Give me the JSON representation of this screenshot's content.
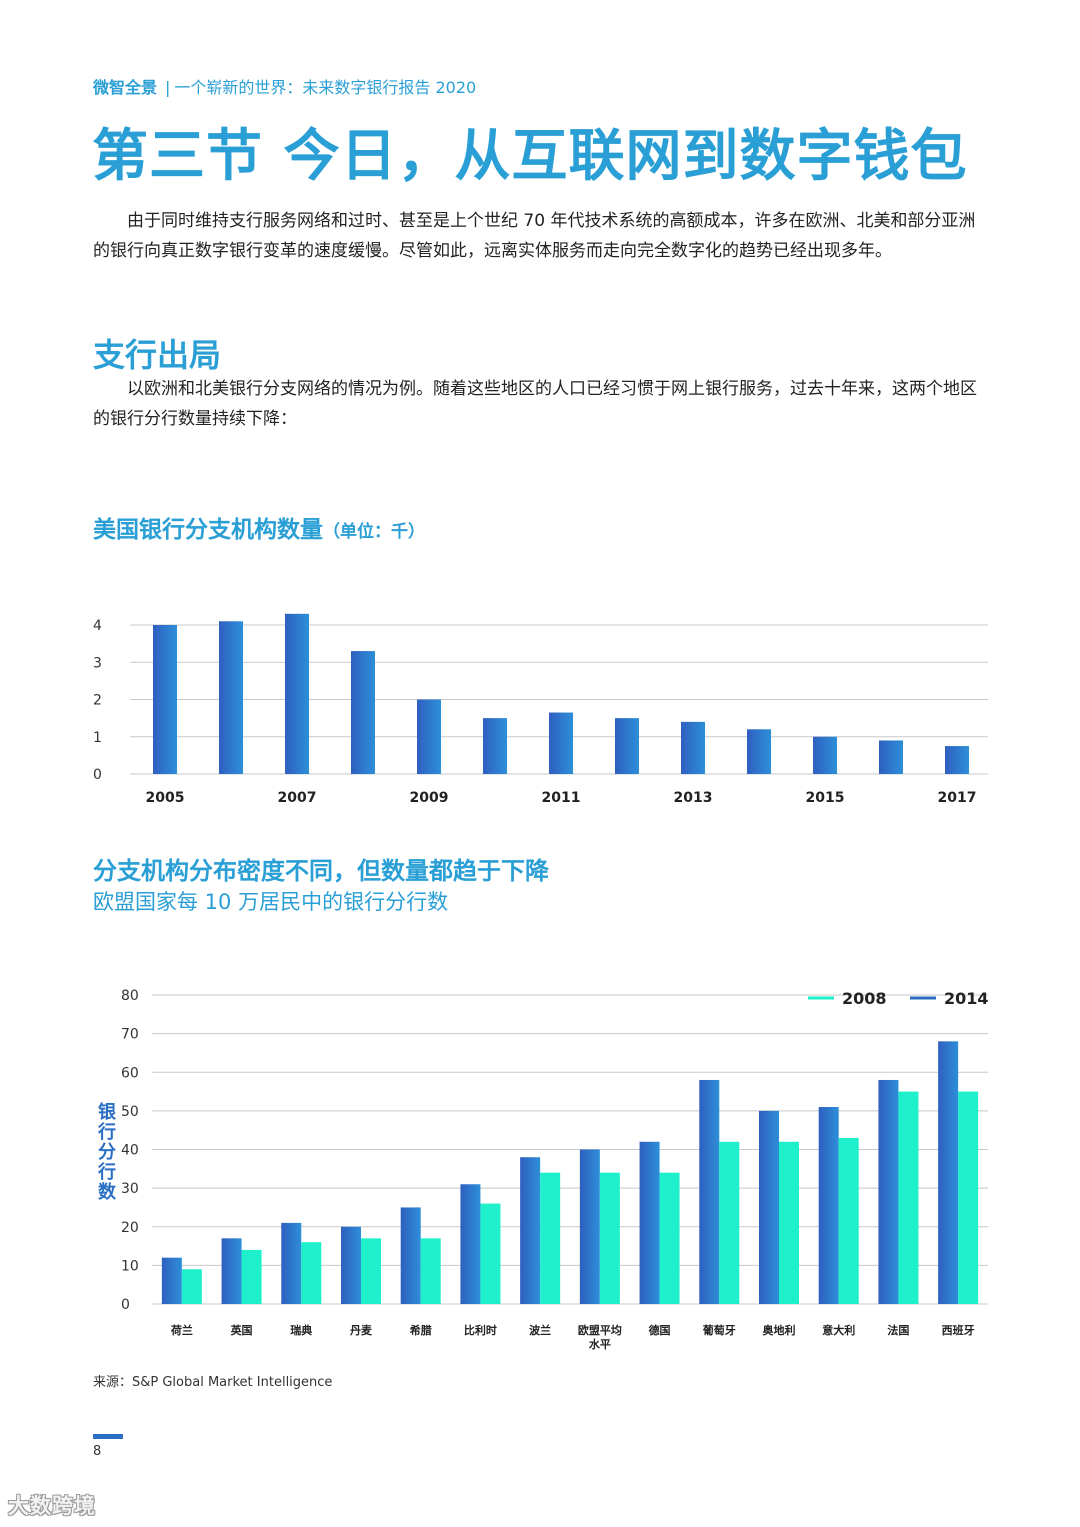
{
  "header": {
    "brand": "微智全景",
    "sep": "|",
    "subtitle": "一个崭新的世界：未来数字银行报告 2020"
  },
  "title": "第三节  今日，从互联网到数字钱包",
  "para1": "由于同时维持支行服务网络和过时、甚至是上个世纪 70 年代技术系统的高额成本，许多在欧洲、北美和部分亚洲的银行向真正数字银行变革的速度缓慢。尽管如此，远离实体服务而走向完全数字化的趋势已经出现多年。",
  "section_heading": "支行出局",
  "para2": "以欧洲和北美银行分支网络的情况为例。随着这些地区的人口已经习惯于网上银行服务，过去十年来，这两个地区的银行分行数量持续下降：",
  "chart1_heading": {
    "title": "美国银行分支机构数量",
    "unit": "（单位：千）"
  },
  "chart2_heading": {
    "title": "分支机构分布密度不同，但数量都趋于下降",
    "subtitle": "欧盟国家每 10 万居民中的银行分行数"
  },
  "chart2_ylabel": "银行分行数",
  "source": "来源：S&P Global Market Intelligence",
  "page_number": "8",
  "watermark": "大数跨境",
  "colors": {
    "accent": "#2a9fd6",
    "bar_dark": "#2a6fc4",
    "bar_light": "#1ef0cc",
    "grid": "#c8c8c8"
  },
  "chart_data": [
    {
      "type": "bar",
      "title": "美国银行分支机构数量",
      "unit": "（单位：千）",
      "categories": [
        "2005",
        "2006",
        "2007",
        "2008",
        "2009",
        "2010",
        "2011",
        "2012",
        "2013",
        "2014",
        "2015",
        "2016",
        "2017"
      ],
      "tick_labels": [
        "2005",
        "2007",
        "2009",
        "2011",
        "2013",
        "2015",
        "2017"
      ],
      "values": [
        4.0,
        4.1,
        4.3,
        3.3,
        2.0,
        1.5,
        1.65,
        1.5,
        1.4,
        1.2,
        1.0,
        0.9,
        0.75
      ],
      "yticks": [
        0,
        1,
        2,
        3,
        4
      ],
      "ylim": [
        0,
        4
      ],
      "grid": true
    },
    {
      "type": "bar",
      "title": "分支机构分布密度不同，但数量都趋于下降",
      "subtitle": "欧盟国家每 10 万居民中的银行分行数",
      "ylabel": "银行分行数",
      "categories": [
        "荷兰",
        "英国",
        "瑞典",
        "丹麦",
        "希腊",
        "比利时",
        "波兰",
        "欧盟平均水平",
        "德国",
        "葡萄牙",
        "奥地利",
        "意大利",
        "法国",
        "西班牙"
      ],
      "category_label_lines": [
        [
          "荷兰"
        ],
        [
          "英国"
        ],
        [
          "瑞典"
        ],
        [
          "丹麦"
        ],
        [
          "希腊"
        ],
        [
          "比利时"
        ],
        [
          "波兰"
        ],
        [
          "欧盟平均",
          "水平"
        ],
        [
          "德国"
        ],
        [
          "葡萄牙"
        ],
        [
          "奥地利"
        ],
        [
          "意大利"
        ],
        [
          "法国"
        ],
        [
          "西班牙"
        ]
      ],
      "series": [
        {
          "name": "2014",
          "color": "#2a6fc4",
          "values": [
            12,
            17,
            21,
            20,
            25,
            31,
            38,
            40,
            42,
            58,
            50,
            51,
            58,
            68
          ]
        },
        {
          "name": "2008",
          "color": "#1ef0cc",
          "values": [
            9,
            14,
            16,
            17,
            17,
            26,
            34,
            34,
            34,
            42,
            42,
            43,
            55,
            55
          ]
        }
      ],
      "legend": [
        "2008",
        "2014"
      ],
      "legend_position": "top-right",
      "yticks": [
        0,
        10,
        20,
        30,
        40,
        50,
        60,
        70,
        80
      ],
      "ylim": [
        0,
        80
      ],
      "grid": true
    }
  ]
}
